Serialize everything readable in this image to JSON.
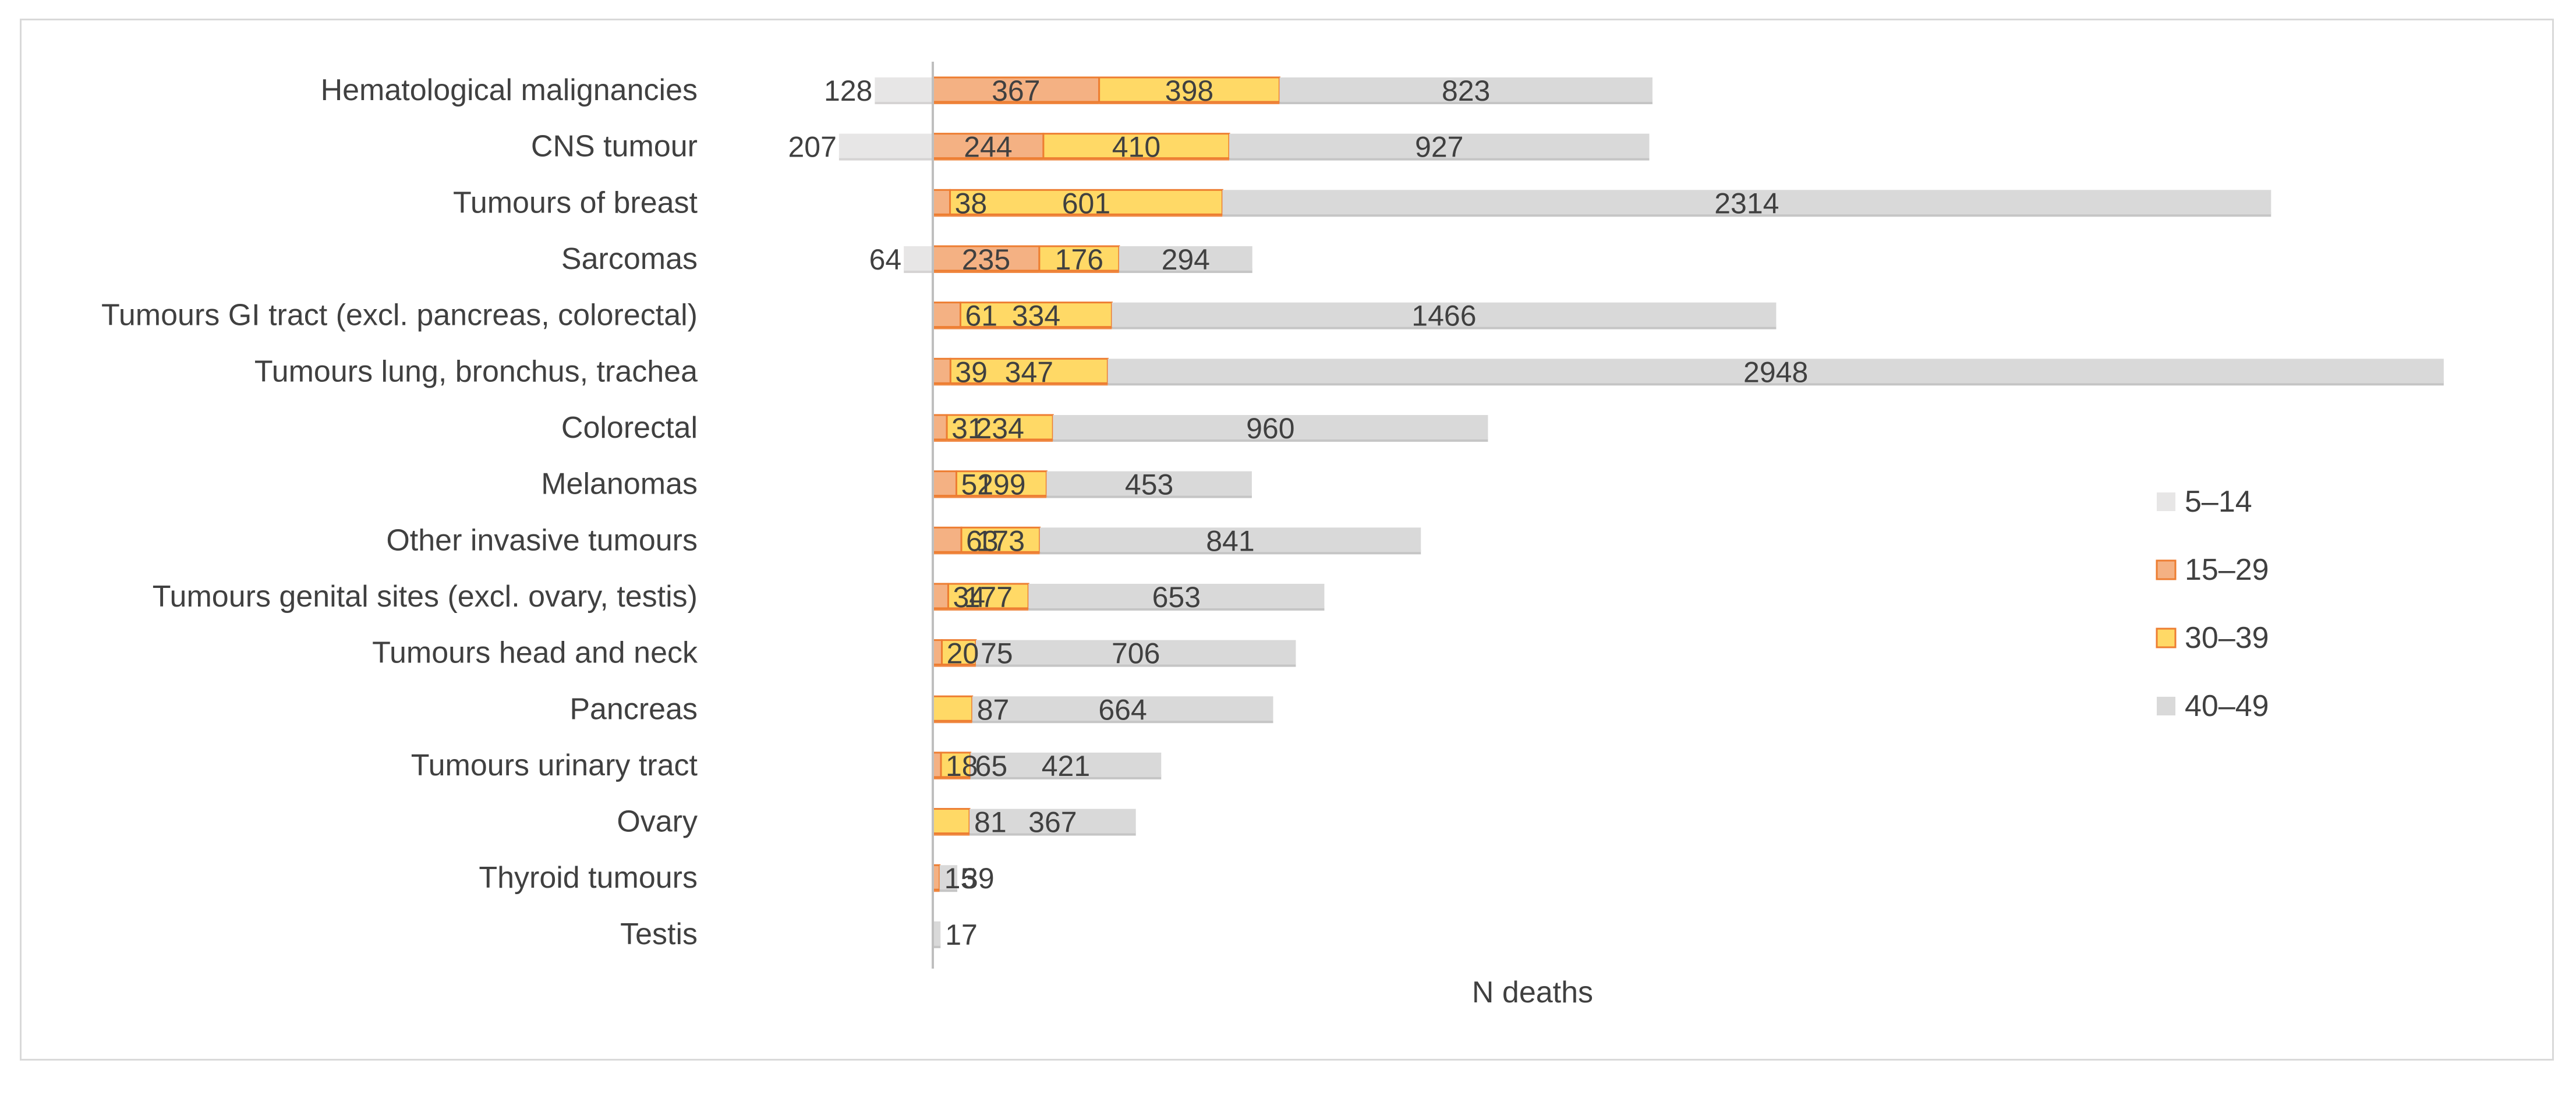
{
  "chart_data": {
    "type": "bar",
    "orientation": "horizontal",
    "stacked": true,
    "title": "",
    "xlabel": "N deaths",
    "ylabel": "",
    "grid": false,
    "legend_position": "right",
    "categories": [
      "Hematological malignancies",
      "CNS tumour",
      "Tumours of breast",
      "Sarcomas",
      "Tumours GI tract (excl. pancreas, colorectal)",
      "Tumours lung, bronchus, trachea",
      "Colorectal",
      "Melanomas",
      "Other invasive tumours",
      "Tumours genital sites (excl. ovary, testis)",
      "Tumours head and neck",
      "Pancreas",
      "Tumours urinary tract",
      "Ovary",
      "Thyroid tumours",
      "Testis"
    ],
    "series": [
      {
        "name": "5–14",
        "color": "#e7e6e6",
        "edge": "#d0cece",
        "values": [
          128,
          207,
          null,
          64,
          null,
          null,
          null,
          null,
          null,
          null,
          null,
          null,
          null,
          null,
          null,
          null
        ],
        "labels": [
          "128",
          "207",
          "",
          "64",
          "",
          "",
          "",
          "",
          "",
          "",
          "",
          "",
          "",
          "",
          "",
          ""
        ],
        "placement": "left"
      },
      {
        "name": "15–29",
        "color": "#f4b183",
        "edge": "#ed7d31",
        "values": [
          367,
          244,
          38,
          235,
          61,
          39,
          31,
          52,
          63,
          34,
          20,
          null,
          18,
          null,
          15,
          null
        ],
        "labels": [
          "367",
          "244",
          "38",
          "235",
          "61",
          "39",
          "31",
          "52",
          "63",
          "34",
          "20",
          "",
          "18",
          "",
          "15",
          ""
        ],
        "placement": "inside"
      },
      {
        "name": "30–39",
        "color": "#ffd966",
        "edge": "#ed7d31",
        "values": [
          398,
          410,
          601,
          176,
          334,
          347,
          234,
          199,
          173,
          177,
          75,
          87,
          65,
          81,
          null,
          null
        ],
        "labels": [
          "398",
          "410",
          "601",
          "176",
          "334",
          "347",
          "234",
          "199",
          "173",
          "177",
          "75",
          "87",
          "65",
          "81",
          "",
          ""
        ],
        "placement": "inside"
      },
      {
        "name": "40–49",
        "color": "#d9d9d9",
        "edge": "#bfbfbf",
        "values": [
          823,
          927,
          2314,
          294,
          1466,
          2948,
          960,
          453,
          841,
          653,
          706,
          664,
          421,
          367,
          39,
          17
        ],
        "labels": [
          "823",
          "927",
          "2314",
          "294",
          "1466",
          "2948",
          "960",
          "453",
          "841",
          "653",
          "706",
          "664",
          "421",
          "367",
          "39",
          "17"
        ],
        "placement": "inside"
      }
    ]
  }
}
